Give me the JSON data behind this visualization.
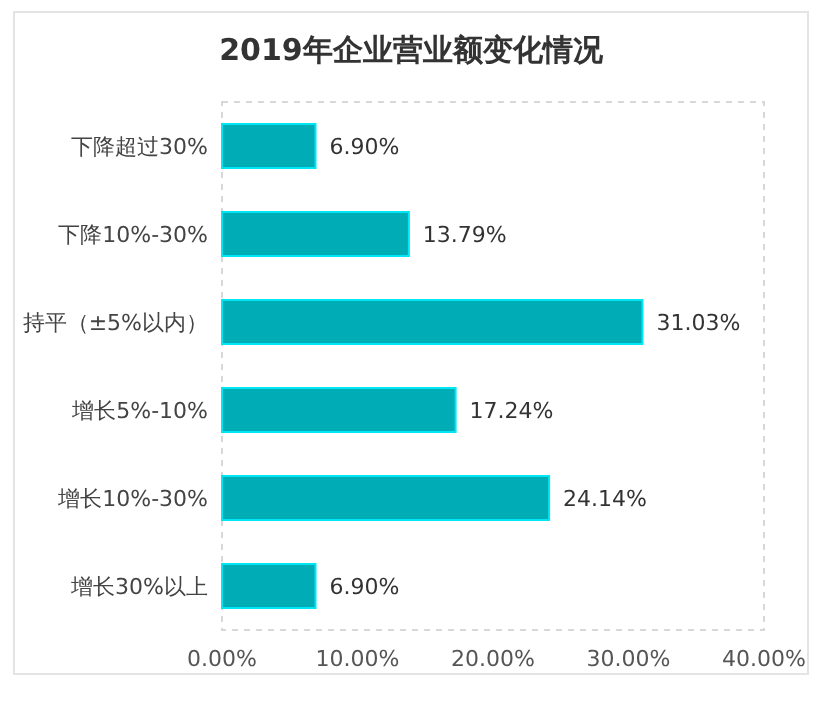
{
  "chart_data": {
    "type": "bar",
    "orientation": "horizontal",
    "title": "2019年企业营业额变化情况",
    "categories": [
      "下降超过30%",
      "下降10%-30%",
      "持平（±5%以内）",
      "增长5%-10%",
      "增长10%-30%",
      "增长30%以上"
    ],
    "values": [
      6.9,
      13.79,
      31.03,
      17.24,
      24.14,
      6.9
    ],
    "value_labels": [
      "6.90%",
      "13.79%",
      "31.03%",
      "17.24%",
      "24.14%",
      "6.90%"
    ],
    "color": "#00adb6",
    "xlim": [
      0,
      40
    ],
    "xticks": [
      {
        "value": 0,
        "label": "0.00%"
      },
      {
        "value": 10,
        "label": "10.00%"
      },
      {
        "value": 20,
        "label": "20.00%"
      },
      {
        "value": 30,
        "label": "30.00%"
      },
      {
        "value": 40,
        "label": "40.00%"
      }
    ],
    "grid": false
  }
}
